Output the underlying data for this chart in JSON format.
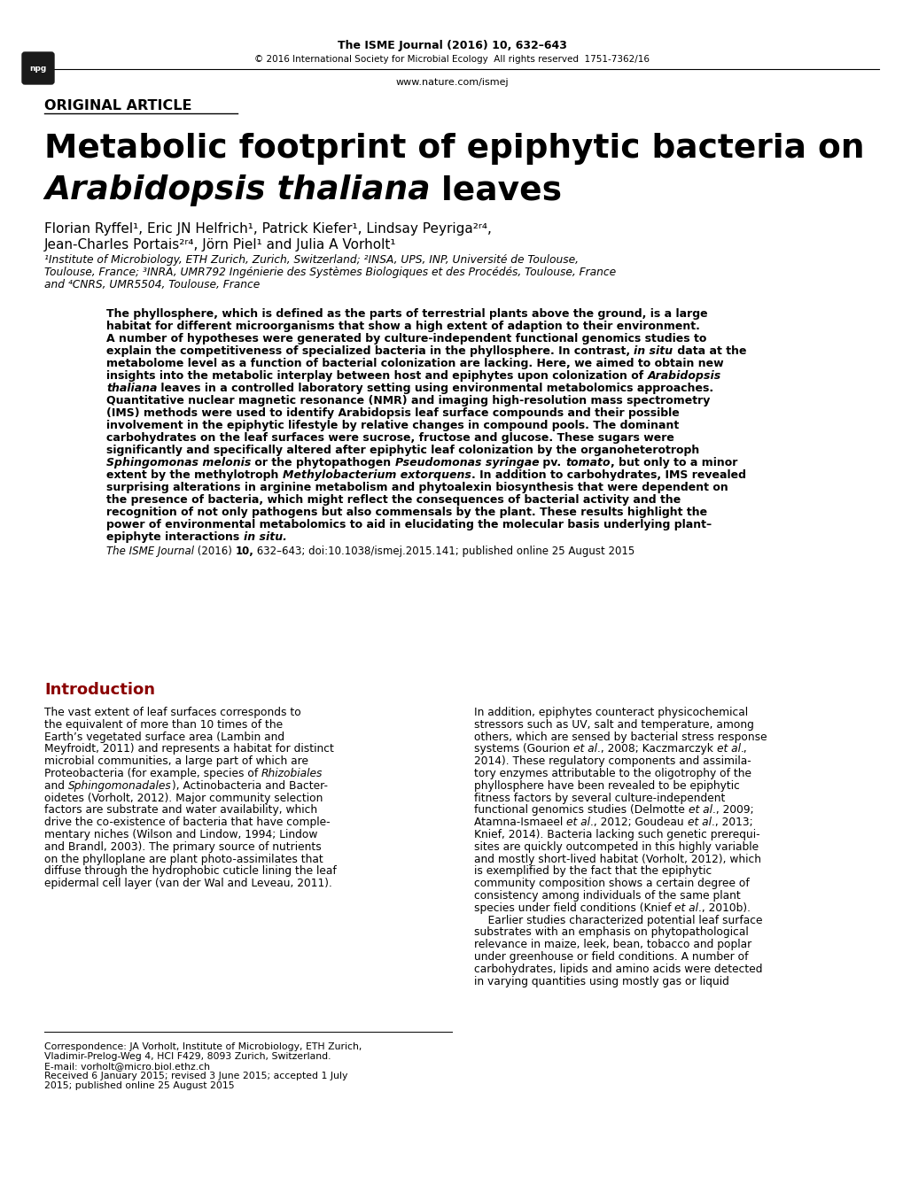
{
  "bg_color": "#ffffff",
  "header_journal_bold": "The ISME Journal (2016) 10,",
  "header_journal_normal": " 632–643",
  "header_copyright": "© 2016 International Society for Microbial Ecology  All rights reserved  1751-7362/16",
  "header_url": "www.nature.com/ismej",
  "section_label": "ORIGINAL ARTICLE",
  "title_line1": "Metabolic footprint of epiphytic bacteria on",
  "title_line2_italic": "Arabidopsis thaliana",
  "title_line2_normal": " leaves",
  "authors_line1": "Florian Ryffel¹, Eric JN Helfrich¹, Patrick Kiefer¹, Lindsay Peyriga²ʳ⁴,",
  "authors_line2": "Jean-Charles Portais²ʳ⁴, Jörn Piel¹ and Julia A Vorholt¹",
  "affil1": "¹Institute of Microbiology, ETH Zurich, Zurich, Switzerland; ²INSA, UPS, INP, Université de Toulouse,",
  "affil2": "Toulouse, France; ³INRA, UMR792 Ingénierie des Systèmes Biologiques et des Procédés, Toulouse, France",
  "affil3": "and ⁴CNRS, UMR5504, Toulouse, France",
  "citation_italic": "The ISME Journal",
  "citation_bold": " (2016) ",
  "citation_bold2": "10,",
  "citation_normal": " 632–643; doi:10.1038/ismej.2015.141; published online 25 August 2015",
  "intro_heading": "Introduction",
  "intro_heading_color": "#8B0000",
  "footer_line1": "Correspondence: JA Vorholt, Institute of Microbiology, ETH Zurich,",
  "footer_line2": "Vladimir-Prelog-Weg 4, HCI F429, 8093 Zurich, Switzerland.",
  "footer_line3": "E-mail: vorholt@micro.biol.ethz.ch",
  "footer_line4": "Received 6 January 2015; revised 3 June 2015; accepted 1 July",
  "footer_line5": "2015; published online 25 August 2015"
}
